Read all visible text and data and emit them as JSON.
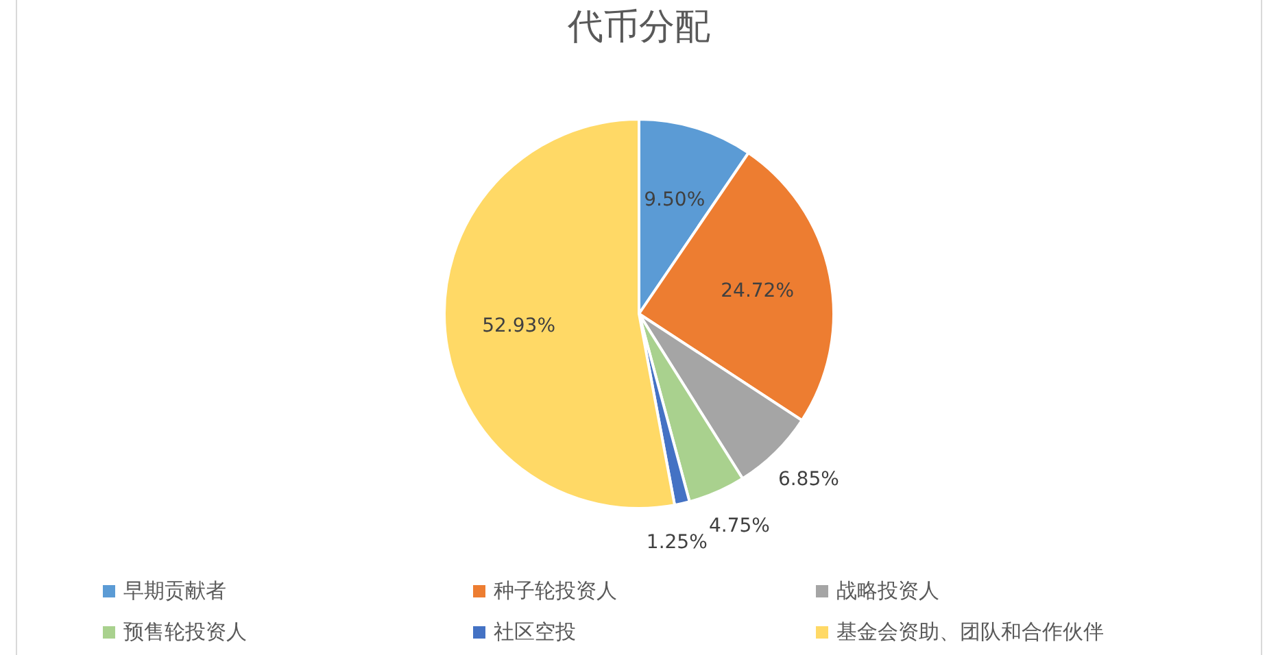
{
  "chart_data": {
    "type": "pie",
    "title": "代币分配",
    "categories": [
      "早期贡献者",
      "种子轮投资人",
      "战略投资人",
      "预售轮投资人",
      "社区空投",
      "基金会资助、团队和合作伙伴"
    ],
    "values": [
      9.5,
      24.72,
      6.85,
      4.75,
      1.25,
      52.93
    ],
    "colors": [
      "#5b9bd5",
      "#ed7d31",
      "#a5a5a5",
      "#a9d18e",
      "#4472c4",
      "#ffd966"
    ],
    "value_labels": [
      "9.50%",
      "24.72%",
      "6.85%",
      "4.75%",
      "1.25%",
      "52.93%"
    ],
    "legend": "bottom"
  }
}
